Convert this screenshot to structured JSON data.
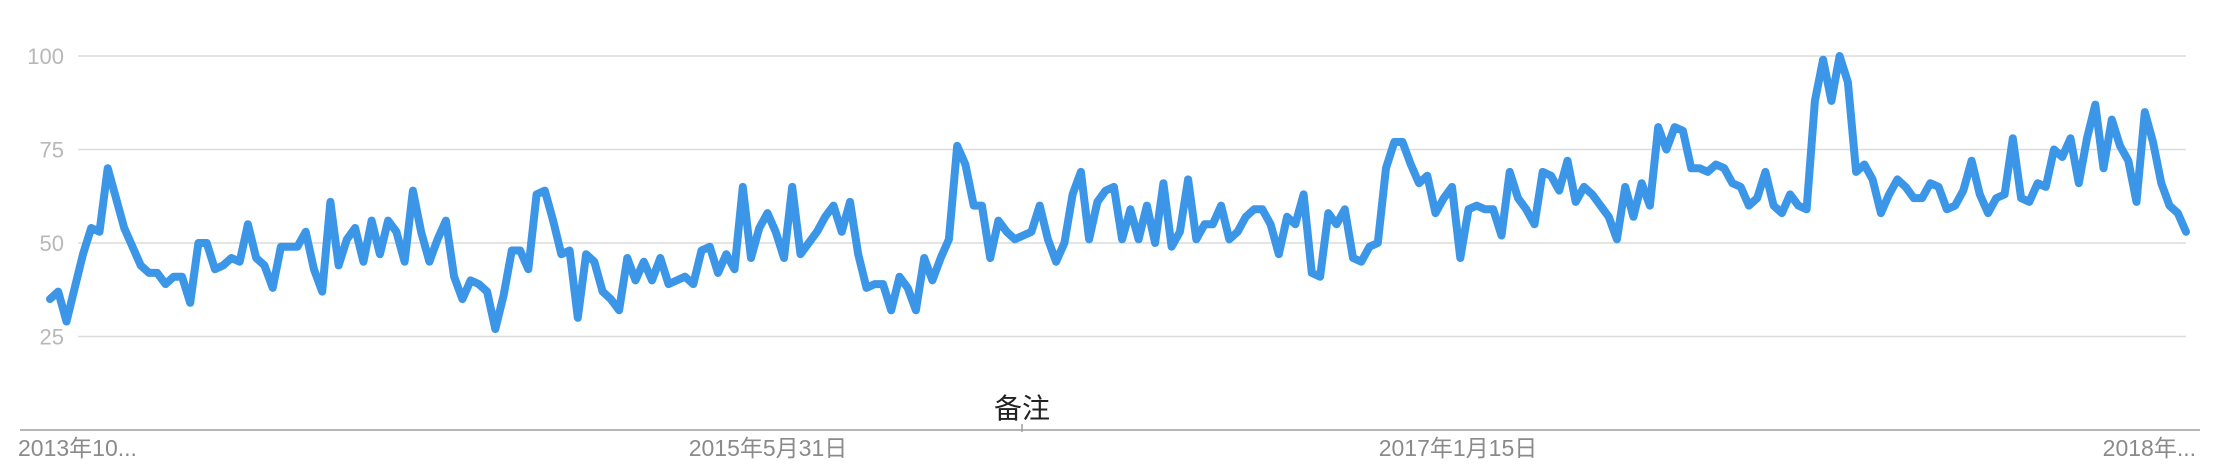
{
  "chart_data": {
    "type": "line",
    "title": "",
    "xlabel": "",
    "ylabel": "",
    "ylim": [
      0,
      100
    ],
    "y_ticks": [
      "25",
      "50",
      "75",
      "100"
    ],
    "x_tick_labels": [
      "2013年10...",
      "2015年5月31日",
      "2017年1月15日",
      "2018年..."
    ],
    "grid": true,
    "annotation": "备注",
    "colors": {
      "series": "#3b96e8"
    },
    "series": [
      {
        "values": [
          35,
          37,
          29,
          38,
          47,
          54,
          53,
          70,
          62,
          54,
          49,
          44,
          42,
          42,
          39,
          41,
          41,
          34,
          50,
          50,
          43,
          44,
          46,
          45,
          55,
          46,
          44,
          38,
          49,
          49,
          49,
          53,
          43,
          37,
          61,
          44,
          51,
          54,
          45,
          56,
          47,
          56,
          53,
          45,
          64,
          53,
          45,
          51,
          56,
          41,
          35,
          40,
          39,
          37,
          27,
          36,
          48,
          48,
          43,
          63,
          64,
          56,
          47,
          48,
          30,
          47,
          45,
          37,
          35,
          32,
          46,
          40,
          45,
          40,
          46,
          39,
          40,
          41,
          39,
          48,
          49,
          42,
          47,
          43,
          65,
          46,
          54,
          58,
          53,
          46,
          65,
          47,
          50,
          53,
          57,
          60,
          53,
          61,
          47,
          38,
          39,
          39,
          32,
          41,
          38,
          32,
          46,
          40,
          46,
          51,
          76,
          71,
          60,
          60,
          46,
          56,
          53,
          51,
          52,
          53,
          60,
          51,
          45,
          50,
          63,
          69,
          51,
          61,
          64,
          65,
          51,
          59,
          51,
          60,
          50,
          66,
          49,
          53,
          67,
          51,
          55,
          55,
          60,
          51,
          53,
          57,
          59,
          59,
          55,
          47,
          57,
          55,
          63,
          42,
          41,
          58,
          55,
          59,
          46,
          45,
          49,
          50,
          70,
          77,
          77,
          71,
          66,
          68,
          58,
          62,
          65,
          46,
          59,
          60,
          59,
          59,
          52,
          69,
          62,
          59,
          55,
          69,
          68,
          64,
          72,
          61,
          65,
          63,
          60,
          57,
          51,
          65,
          57,
          66,
          60,
          81,
          75,
          81,
          80,
          70,
          70,
          69,
          71,
          70,
          66,
          65,
          60,
          62,
          69,
          60,
          58,
          63,
          60,
          59,
          88,
          99,
          88,
          100,
          93,
          69,
          71,
          67,
          58,
          63,
          67,
          65,
          62,
          62,
          66,
          65,
          59,
          60,
          64,
          72,
          63,
          58,
          62,
          63,
          78,
          62,
          61,
          66,
          65,
          75,
          73,
          78,
          66,
          78,
          87,
          70,
          83,
          76,
          72,
          61,
          85,
          77,
          66,
          60,
          58,
          53
        ]
      }
    ]
  }
}
